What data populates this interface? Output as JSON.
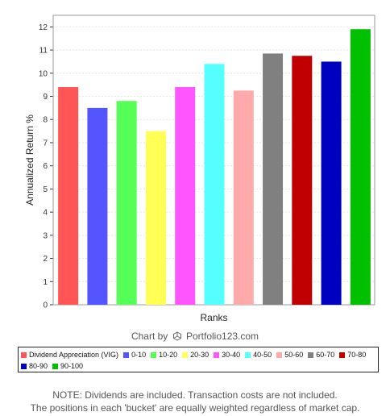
{
  "chart_data": {
    "type": "bar",
    "title": "",
    "xlabel": "Ranks",
    "ylabel": "Annualized Return %",
    "ylim": [
      0,
      12.5
    ],
    "y_ticks": [
      "0",
      "1",
      "2",
      "3",
      "4",
      "5",
      "6",
      "7",
      "8",
      "9",
      "10",
      "11",
      "12"
    ],
    "grid": true,
    "legend_placement": "bottom",
    "categories": [
      "Dividend Appreciation (VIG)",
      "0-10",
      "10-20",
      "20-30",
      "30-40",
      "40-50",
      "50-60",
      "60-70",
      "70-80",
      "80-90",
      "90-100"
    ],
    "values": [
      9.4,
      8.5,
      8.8,
      7.5,
      9.4,
      10.4,
      9.25,
      10.85,
      10.75,
      10.5,
      11.9
    ],
    "colors": [
      "#ff5555",
      "#5555ff",
      "#55ff55",
      "#ffff55",
      "#ff55ff",
      "#55ffff",
      "#ffaaaa",
      "#808080",
      "#c00000",
      "#0000c0",
      "#00c000"
    ]
  },
  "credit": {
    "prefix": "Chart by",
    "brand": "Portfolio123.com"
  },
  "legend": {
    "colors_note": "matches chart colors"
  },
  "note": {
    "line1": "NOTE: Dividends are included. Transaction costs are not included.",
    "line2": "The positions in each 'bucket' are equally weighted regardless of market cap."
  }
}
